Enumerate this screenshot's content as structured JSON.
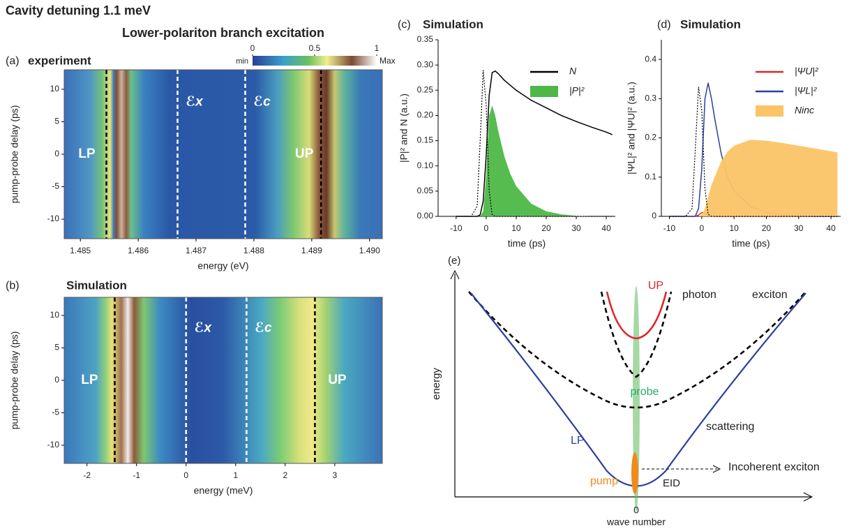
{
  "title": "Cavity detuning 1.1 meV",
  "subtitle": "Lower-polariton branch excitation",
  "chart_data": [
    {
      "type": "heatmap",
      "panel": "(a)",
      "title": "experiment",
      "xlabel": "energy (eV)",
      "ylabel": "pump-probe delay (ps)",
      "xlim": [
        1.48472,
        1.49022
      ],
      "xticks": [
        1.485,
        1.486,
        1.487,
        1.488,
        1.489,
        {
          "value": 1.49,
          "label": "1.490"
        }
      ],
      "ylim": [
        -13,
        13
      ],
      "yticks": [
        -10,
        -5,
        0,
        5,
        10
      ],
      "colorbar": {
        "ticks": [
          0,
          0.5,
          1
        ],
        "min_label": "min",
        "max_label": "Max"
      },
      "markers": [
        {
          "x": 1.48545,
          "color": "#000000",
          "label": "LP"
        },
        {
          "x": 1.48668,
          "color": "#ffffff",
          "label": "ℰx"
        },
        {
          "x": 1.48785,
          "color": "#ffffff",
          "label": "ℰc"
        },
        {
          "x": 1.48916,
          "color": "#000000",
          "label": "UP"
        }
      ]
    },
    {
      "type": "heatmap",
      "panel": "(b)",
      "title": "Simulation",
      "xlabel": "energy (meV)",
      "ylabel": "pump-probe delay (ps)",
      "xlim": [
        -2.46,
        3.96
      ],
      "xticks": [
        -2,
        -1,
        0,
        1,
        2,
        3
      ],
      "ylim": [
        -12.8,
        12.8
      ],
      "yticks": [
        -10,
        -5,
        0,
        5,
        10
      ],
      "markers": [
        {
          "x": -1.44,
          "color": "#000000",
          "label": "LP"
        },
        {
          "x": 0,
          "color": "#ffffff",
          "label": "ℰx"
        },
        {
          "x": 1.22,
          "color": "#ffffff",
          "label": "ℰc"
        },
        {
          "x": 2.6,
          "color": "#000000",
          "label": "UP"
        }
      ]
    },
    {
      "type": "line",
      "panel": "(c)",
      "title": "Simulation",
      "xlabel": "time (ps)",
      "ylabel": "|P|² and N (a.u.)",
      "xlim": [
        -16,
        43
      ],
      "xticks": [
        -10,
        0,
        10,
        20,
        30,
        40
      ],
      "ylim": [
        0,
        0.35
      ],
      "yticks": [
        {
          "value": 0,
          "label": "0.00"
        },
        0.05,
        {
          "value": 0.1,
          "label": "0.10"
        },
        0.15,
        {
          "value": 0.2,
          "label": "0.20"
        },
        0.25,
        {
          "value": 0.3,
          "label": "0.30"
        },
        0.35
      ],
      "legend": "upper right",
      "x": [
        -10,
        -5,
        -3,
        -2,
        -1,
        0,
        1,
        2,
        3,
        4,
        6,
        8,
        10,
        15,
        20,
        25,
        30,
        35,
        40,
        42
      ],
      "series": [
        {
          "name": "N",
          "color": "#000000",
          "values": [
            0,
            0,
            0,
            0.003,
            0.03,
            0.12,
            0.24,
            0.285,
            0.288,
            0.283,
            0.27,
            0.26,
            0.25,
            0.23,
            0.215,
            0.2,
            0.188,
            0.177,
            0.167,
            0.162
          ]
        },
        {
          "name": "|P|²",
          "color": "#4db847",
          "fill": true,
          "values": [
            0,
            0,
            0,
            0,
            0.01,
            0.08,
            0.2,
            0.22,
            0.2,
            0.17,
            0.12,
            0.085,
            0.06,
            0.025,
            0.01,
            0.004,
            0.001,
            0,
            0,
            0
          ]
        },
        {
          "color": "#000000",
          "dash": true,
          "values": [
            0,
            0,
            0.02,
            0.15,
            0.29,
            0.22,
            0.05,
            0.003,
            0,
            0,
            0,
            0,
            0,
            0,
            0,
            0,
            0,
            0,
            0,
            0
          ]
        }
      ]
    },
    {
      "type": "line",
      "panel": "(d)",
      "title": "Simulation",
      "xlabel": "time (ps)",
      "ylabel": "|ΨL|² and |ΨU|² (a.u.)",
      "xlim": [
        -12.5,
        43
      ],
      "xticks": [
        -10,
        0,
        10,
        20,
        30,
        40
      ],
      "ylim": [
        0,
        0.45
      ],
      "yticks": [
        0,
        0.1,
        0.2,
        0.3,
        0.4
      ],
      "legend": "upper right",
      "x": [
        -10,
        -5,
        -3,
        -2,
        -1,
        0,
        1,
        2,
        3,
        4,
        6,
        8,
        10,
        15,
        20,
        25,
        30,
        35,
        40,
        42
      ],
      "series": [
        {
          "name": "|ΨU|²",
          "color": "#e0262b",
          "values": [
            0,
            0,
            0,
            0,
            0.003,
            0.01,
            0.008,
            0.003,
            0.001,
            0,
            0,
            0,
            0,
            0,
            0,
            0,
            0,
            0,
            0,
            0
          ]
        },
        {
          "name": "|ΨL|²",
          "color": "#2b3f9e",
          "values": [
            0,
            0,
            0,
            0,
            0.02,
            0.12,
            0.3,
            0.34,
            0.3,
            0.25,
            0.16,
            0.1,
            0.065,
            0.025,
            0.01,
            0.004,
            0.001,
            0,
            0,
            0
          ]
        },
        {
          "name": "Ninc",
          "color": "#fbc466",
          "fill": true,
          "values": [
            0,
            0,
            0,
            0,
            0,
            0.005,
            0.02,
            0.05,
            0.08,
            0.1,
            0.14,
            0.165,
            0.18,
            0.195,
            0.193,
            0.187,
            0.18,
            0.173,
            0.166,
            0.163
          ]
        },
        {
          "color": "#000000",
          "dash": true,
          "values": [
            0,
            0,
            0.02,
            0.17,
            0.33,
            0.27,
            0.07,
            0.005,
            0,
            0,
            0,
            0,
            0,
            0,
            0,
            0,
            0,
            0,
            0,
            0
          ]
        }
      ]
    }
  ],
  "diagram": {
    "panel": "(e)",
    "yaxis": "energy",
    "xaxis": "wave number",
    "origin": "0",
    "labels": {
      "up": "UP",
      "photon": "photon",
      "exciton": "exciton",
      "probe": "probe",
      "scattering": "scattering",
      "lp": "LP",
      "pump": "pump",
      "eid": "EID",
      "incoherent": "Incoherent exciton"
    }
  }
}
